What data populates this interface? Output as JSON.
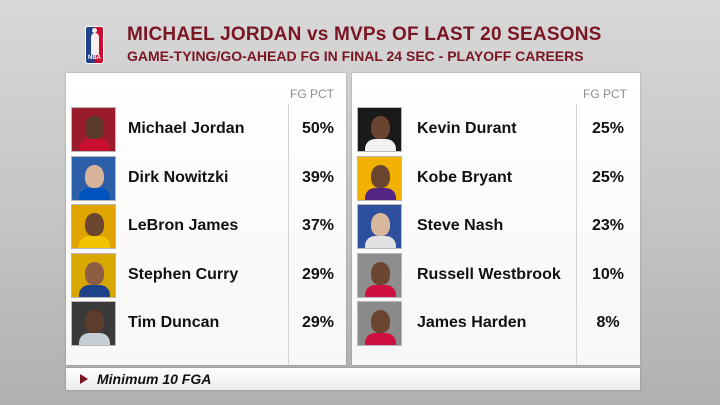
{
  "header": {
    "title": "MICHAEL JORDAN vs MVPs OF LAST 20 SEASONS",
    "subtitle": "GAME-TYING/GO-AHEAD FG IN FINAL 24 SEC - PLAYOFF CAREERS",
    "logo_icon": "nba-logo-icon",
    "logo_text": "NBA"
  },
  "column_header": "FG PCT",
  "left_players": [
    {
      "name": "Michael Jordan",
      "pct": "50%",
      "photo_colors": {
        "bg": "#9a1b2c",
        "jersey": "#c8102e",
        "skin": "#5a3a2a"
      }
    },
    {
      "name": "Dirk Nowitzki",
      "pct": "39%",
      "photo_colors": {
        "bg": "#2d5ea8",
        "jersey": "#0053bc",
        "skin": "#d8b49a"
      }
    },
    {
      "name": "LeBron James",
      "pct": "37%",
      "photo_colors": {
        "bg": "#e0a400",
        "jersey": "#f5c400",
        "skin": "#6b4530"
      }
    },
    {
      "name": "Stephen Curry",
      "pct": "29%",
      "photo_colors": {
        "bg": "#d9a800",
        "jersey": "#1d428a",
        "skin": "#8d5e43"
      }
    },
    {
      "name": "Tim Duncan",
      "pct": "29%",
      "photo_colors": {
        "bg": "#3a3a3a",
        "jersey": "#c4ced4",
        "skin": "#5d3c2b"
      }
    }
  ],
  "right_players": [
    {
      "name": "Kevin Durant",
      "pct": "25%",
      "photo_colors": {
        "bg": "#1a1a1a",
        "jersey": "#f2f2f2",
        "skin": "#6a4430"
      }
    },
    {
      "name": "Kobe Bryant",
      "pct": "25%",
      "photo_colors": {
        "bg": "#f2b100",
        "jersey": "#552583",
        "skin": "#6b4530"
      }
    },
    {
      "name": "Steve Nash",
      "pct": "23%",
      "photo_colors": {
        "bg": "#2e4e9e",
        "jersey": "#e2e2e2",
        "skin": "#d9b79c"
      }
    },
    {
      "name": "Russell Westbrook",
      "pct": "10%",
      "photo_colors": {
        "bg": "#8e8e8e",
        "jersey": "#ce1141",
        "skin": "#6b4530"
      }
    },
    {
      "name": "James Harden",
      "pct": "8%",
      "photo_colors": {
        "bg": "#8a8a8a",
        "jersey": "#ce1141",
        "skin": "#6b4530"
      }
    }
  ],
  "footer": {
    "note": "Minimum 10 FGA"
  },
  "colors": {
    "title": "#7a1522",
    "accent_arrow": "#7a1522",
    "panel_bg": "#ffffff",
    "text": "#111111",
    "column_header": "#8e8e8e"
  }
}
